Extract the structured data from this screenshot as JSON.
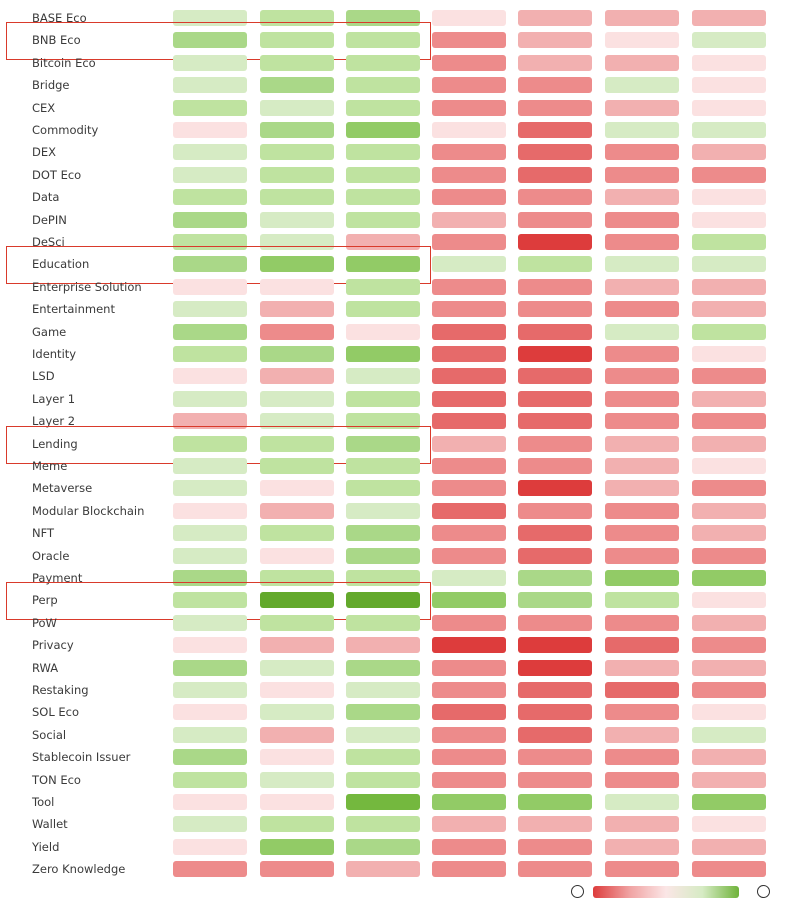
{
  "colors": {
    "-3": "#dd3c3c",
    "-2": "#e66a6a",
    "-1": "#ed8b8b",
    "-0.5": "#f2b0b0",
    "0": "#fbe1e1",
    "0.5": "#d6ebc4",
    "1": "#bfe3a0",
    "1.5": "#aad888",
    "2": "#92cb66",
    "3": "#63a92c",
    "3.5": "#74b83e",
    "highlight": "#d93a2b"
  },
  "chart_data": {
    "type": "heatmap",
    "categories_y": [
      "BASE Eco",
      "BNB Eco",
      "Bitcoin Eco",
      "Bridge",
      "CEX",
      "Commodity",
      "DEX",
      "DOT Eco",
      "Data",
      "DePIN",
      "DeSci",
      "Education",
      "Enterprise Solution",
      "Entertainment",
      "Game",
      "Identity",
      "LSD",
      "Layer 1",
      "Layer 2",
      "Lending",
      "Meme",
      "Metaverse",
      "Modular Blockchain",
      "NFT",
      "Oracle",
      "Payment",
      "Perp",
      "PoW",
      "Privacy",
      "RWA",
      "Restaking",
      "SOL Eco",
      "Social",
      "Stablecoin Issuer",
      "TON Eco",
      "Tool",
      "Wallet",
      "Yield",
      "Zero Knowledge"
    ],
    "columns": 7,
    "highlighted_rows": [
      "BNB Eco",
      "Education",
      "Lending",
      "Perp"
    ],
    "values": [
      [
        0.5,
        1,
        1.5,
        0,
        -0.5,
        -0.5,
        -0.5
      ],
      [
        1.5,
        1,
        1,
        -1,
        -0.5,
        0,
        0.5
      ],
      [
        0.5,
        1,
        1,
        -1,
        -0.5,
        -0.5,
        0
      ],
      [
        0.5,
        1.5,
        1,
        -1,
        -1,
        0.5,
        0
      ],
      [
        1,
        0.5,
        1,
        -1,
        -1,
        -0.5,
        0
      ],
      [
        0,
        1.5,
        2,
        0,
        -2,
        0.5,
        0.5
      ],
      [
        0.5,
        1,
        1,
        -1,
        -2,
        -1,
        -0.5
      ],
      [
        0.5,
        1,
        1,
        -1,
        -2,
        -1,
        -1
      ],
      [
        1,
        1,
        1,
        -1,
        -1,
        -0.5,
        0
      ],
      [
        1.5,
        0.5,
        1,
        -0.5,
        -1,
        -1,
        0
      ],
      [
        1,
        0.5,
        -0.5,
        -1,
        -3,
        -1,
        1
      ],
      [
        1.5,
        2,
        2,
        0.5,
        1,
        0.5,
        0.5
      ],
      [
        0,
        0,
        1,
        -1,
        -1,
        -0.5,
        -0.5
      ],
      [
        0.5,
        -0.5,
        1,
        -1,
        -1,
        -1,
        -0.5
      ],
      [
        1.5,
        -1,
        0,
        -2,
        -2,
        0.5,
        1
      ],
      [
        1,
        1.5,
        2,
        -2,
        -3,
        -1,
        0
      ],
      [
        0,
        -0.5,
        0.5,
        -2,
        -2,
        -1,
        -1
      ],
      [
        0.5,
        0.5,
        1,
        -2,
        -2,
        -1,
        -0.5
      ],
      [
        -0.5,
        0.5,
        1,
        -2,
        -2,
        -1,
        -1
      ],
      [
        1,
        1,
        1.5,
        -0.5,
        -1,
        -0.5,
        -0.5
      ],
      [
        0.5,
        1,
        1,
        -1,
        -1,
        -0.5,
        0
      ],
      [
        0.5,
        0,
        1,
        -1,
        -3,
        -0.5,
        -1
      ],
      [
        0,
        -0.5,
        0.5,
        -2,
        -1,
        -1,
        -0.5
      ],
      [
        0.5,
        1,
        1.5,
        -1,
        -2,
        -1,
        -0.5
      ],
      [
        0.5,
        0,
        1.5,
        -1,
        -2,
        -1,
        -1
      ],
      [
        1.5,
        1,
        1,
        0.5,
        1.5,
        2,
        2
      ],
      [
        1,
        3,
        3,
        2,
        1.5,
        1,
        0
      ],
      [
        0.5,
        1,
        1,
        -1,
        -1,
        -1,
        -0.5
      ],
      [
        0,
        -0.5,
        -0.5,
        -3,
        -3,
        -2,
        -1
      ],
      [
        1.5,
        0.5,
        1.5,
        -1,
        -3,
        -0.5,
        -0.5
      ],
      [
        0.5,
        0,
        0.5,
        -1,
        -2,
        -2,
        -1
      ],
      [
        0,
        0.5,
        1.5,
        -2,
        -2,
        -1,
        0
      ],
      [
        0.5,
        -0.5,
        0.5,
        -1,
        -2,
        -0.5,
        0.5
      ],
      [
        1.5,
        0,
        1,
        -1,
        -1,
        -1,
        -0.5
      ],
      [
        1,
        0.5,
        1,
        -1,
        -1,
        -1,
        -0.5
      ],
      [
        0,
        0,
        3.5,
        2,
        2,
        0.5,
        2
      ],
      [
        0.5,
        1,
        1,
        -0.5,
        -0.5,
        -0.5,
        0
      ],
      [
        0,
        2,
        1.5,
        -1,
        -1,
        -0.5,
        -0.5
      ],
      [
        -1,
        -1,
        -0.5,
        -1,
        -1,
        -1,
        -1
      ]
    ]
  }
}
